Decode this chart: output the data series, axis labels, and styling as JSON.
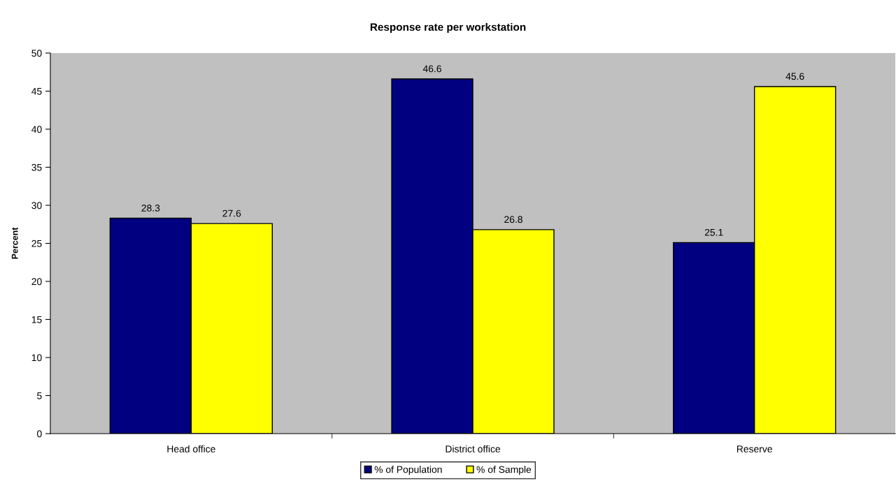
{
  "chart_data": {
    "type": "bar",
    "title": "Response rate per workstation",
    "ylabel": "Percent",
    "categories": [
      "Head office",
      "District office",
      "Reserve"
    ],
    "series": [
      {
        "name": "% of Population",
        "color": "#000080",
        "values": [
          28.3,
          46.6,
          25.1
        ]
      },
      {
        "name": "% of Sample",
        "color": "#ffff00",
        "values": [
          27.6,
          26.8,
          45.6
        ]
      }
    ],
    "ylim": [
      0,
      50
    ],
    "yticks": [
      0,
      5,
      10,
      15,
      20,
      25,
      30,
      35,
      40,
      45,
      50
    ],
    "grid": false,
    "legend": "bottom",
    "data_labels": true
  }
}
